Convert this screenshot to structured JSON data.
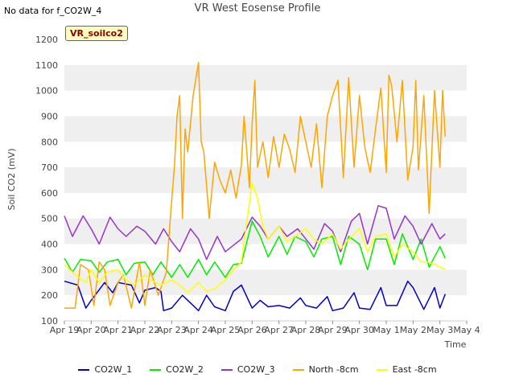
{
  "header": {
    "no_data_text": "No data for f_CO2W_4",
    "title": "VR West Eosense Profile",
    "badge": "VR_soilco2"
  },
  "chart_data": {
    "type": "line",
    "title": "VR West Eosense Profile",
    "xlabel": "Time",
    "ylabel": "Soil CO2 (mV)",
    "ylim": [
      100,
      1200
    ],
    "yticks": [
      100,
      200,
      300,
      400,
      500,
      600,
      700,
      800,
      900,
      1000,
      1100,
      1200
    ],
    "xlim": [
      0,
      15
    ],
    "xticks": [
      {
        "v": 0,
        "label": "Apr 19"
      },
      {
        "v": 1,
        "label": "Apr 20"
      },
      {
        "v": 2,
        "label": "Apr 21"
      },
      {
        "v": 3,
        "label": "Apr 22"
      },
      {
        "v": 4,
        "label": "Apr 23"
      },
      {
        "v": 5,
        "label": "Apr 24"
      },
      {
        "v": 6,
        "label": "Apr 25"
      },
      {
        "v": 7,
        "label": "Apr 26"
      },
      {
        "v": 8,
        "label": "Apr 27"
      },
      {
        "v": 9,
        "label": "Apr 28"
      },
      {
        "v": 10,
        "label": "Apr 29"
      },
      {
        "v": 11,
        "label": "Apr 30"
      },
      {
        "v": 12,
        "label": "May 1"
      },
      {
        "v": 13,
        "label": "May 2"
      },
      {
        "v": 14,
        "label": "May 3"
      },
      {
        "v": 15,
        "label": "May 4"
      }
    ],
    "grid": "horizontal bands",
    "legend_position": "bottom",
    "series": [
      {
        "name": "CO2W_1",
        "color": "#0000cc",
        "x": [
          0,
          0.5,
          0.8,
          1,
          1.5,
          1.8,
          2,
          2.5,
          2.8,
          3,
          3.4,
          3.6,
          3.7,
          4,
          4.4,
          4.7,
          5,
          5.3,
          5.6,
          6,
          6.3,
          6.6,
          7,
          7.3,
          7.6,
          8,
          8.4,
          8.8,
          9,
          9.4,
          9.8,
          10,
          10.4,
          10.8,
          11,
          11.4,
          11.8,
          12,
          12.4,
          12.8,
          13,
          13.4,
          13.8,
          14,
          14.2
        ],
        "values": [
          255,
          240,
          150,
          180,
          250,
          210,
          250,
          240,
          170,
          220,
          230,
          215,
          140,
          150,
          200,
          170,
          140,
          200,
          155,
          140,
          215,
          240,
          150,
          180,
          155,
          160,
          150,
          190,
          160,
          150,
          195,
          140,
          150,
          210,
          150,
          145,
          230,
          160,
          160,
          255,
          230,
          145,
          230,
          150,
          205
        ]
      },
      {
        "name": "CO2W_2",
        "color": "#00ee00",
        "x": [
          0,
          0.3,
          0.6,
          1,
          1.3,
          1.6,
          2,
          2.3,
          2.6,
          3,
          3.3,
          3.6,
          4,
          4.3,
          4.6,
          5,
          5.3,
          5.6,
          6,
          6.3,
          6.6,
          7,
          7.3,
          7.6,
          8,
          8.3,
          8.6,
          9,
          9.3,
          9.6,
          10,
          10.3,
          10.6,
          11,
          11.3,
          11.6,
          12,
          12.3,
          12.6,
          13,
          13.3,
          13.6,
          14,
          14.2
        ],
        "values": [
          345,
          290,
          340,
          335,
          290,
          330,
          340,
          280,
          325,
          330,
          280,
          330,
          270,
          320,
          270,
          340,
          280,
          330,
          270,
          320,
          325,
          490,
          430,
          350,
          430,
          360,
          430,
          410,
          350,
          420,
          430,
          320,
          430,
          400,
          300,
          420,
          420,
          320,
          440,
          340,
          420,
          310,
          390,
          345
        ]
      },
      {
        "name": "CO2W_3",
        "color": "#9933cc",
        "x": [
          0,
          0.3,
          0.7,
          1,
          1.3,
          1.7,
          2,
          2.3,
          2.7,
          3,
          3.4,
          3.7,
          4,
          4.3,
          4.7,
          5,
          5.3,
          5.7,
          6,
          6.3,
          6.6,
          7,
          7.3,
          7.6,
          8,
          8.3,
          8.7,
          9,
          9.3,
          9.7,
          10,
          10.3,
          10.7,
          11,
          11.3,
          11.7,
          12,
          12.3,
          12.7,
          13,
          13.3,
          13.7,
          14,
          14.2
        ],
        "values": [
          510,
          430,
          510,
          460,
          400,
          505,
          460,
          430,
          470,
          450,
          400,
          460,
          410,
          370,
          460,
          420,
          340,
          430,
          370,
          395,
          420,
          505,
          470,
          420,
          470,
          430,
          460,
          420,
          380,
          480,
          450,
          370,
          490,
          520,
          400,
          550,
          540,
          420,
          510,
          470,
          400,
          480,
          420,
          440
        ]
      },
      {
        "name": "North -8cm",
        "color": "#ffa500",
        "x": [
          0,
          0.4,
          0.6,
          0.9,
          1.1,
          1.3,
          1.5,
          1.7,
          2,
          2.2,
          2.5,
          2.8,
          3,
          3.2,
          3.5,
          3.8,
          4,
          4.1,
          4.2,
          4.3,
          4.4,
          4.5,
          4.6,
          4.8,
          5,
          5.1,
          5.2,
          5.4,
          5.6,
          5.8,
          6,
          6.2,
          6.4,
          6.6,
          6.7,
          6.9,
          7,
          7.1,
          7.2,
          7.4,
          7.6,
          7.8,
          8,
          8.2,
          8.4,
          8.6,
          8.8,
          9,
          9.2,
          9.4,
          9.6,
          9.8,
          10,
          10.2,
          10.4,
          10.6,
          10.8,
          11,
          11.2,
          11.4,
          11.6,
          11.8,
          12,
          12.1,
          12.2,
          12.4,
          12.6,
          12.8,
          13,
          13.1,
          13.2,
          13.4,
          13.6,
          13.8,
          14,
          14.1,
          14.2
        ],
        "values": [
          150,
          150,
          320,
          300,
          160,
          330,
          300,
          160,
          250,
          280,
          150,
          330,
          160,
          300,
          200,
          290,
          570,
          700,
          900,
          980,
          500,
          850,
          760,
          980,
          1110,
          800,
          760,
          500,
          720,
          650,
          600,
          690,
          580,
          710,
          900,
          620,
          870,
          1040,
          700,
          800,
          660,
          820,
          700,
          830,
          770,
          680,
          900,
          800,
          700,
          870,
          620,
          900,
          980,
          1040,
          660,
          1050,
          700,
          980,
          780,
          680,
          850,
          1010,
          680,
          1060,
          1020,
          800,
          1040,
          650,
          780,
          1040,
          690,
          980,
          520,
          1000,
          700,
          1000,
          820
        ]
      },
      {
        "name": "East -8cm",
        "color": "#ffff00",
        "x": [
          0,
          0.4,
          0.8,
          1,
          1.3,
          1.6,
          2,
          2.3,
          2.6,
          3,
          3.3,
          3.6,
          4,
          4.3,
          4.6,
          5,
          5.3,
          5.6,
          6,
          6.3,
          6.6,
          7,
          7.2,
          7.4,
          7.6,
          8,
          8.3,
          8.6,
          9,
          9.3,
          9.6,
          10,
          10.3,
          10.6,
          11,
          11.3,
          11.6,
          12,
          12.3,
          12.6,
          13,
          13.3,
          13.6,
          14,
          14.2
        ],
        "values": [
          320,
          280,
          250,
          300,
          250,
          290,
          300,
          260,
          240,
          280,
          255,
          240,
          260,
          240,
          210,
          250,
          215,
          225,
          260,
          300,
          330,
          640,
          580,
          470,
          420,
          470,
          410,
          430,
          460,
          420,
          400,
          440,
          380,
          420,
          460,
          370,
          430,
          440,
          350,
          400,
          370,
          330,
          330,
          310,
          300
        ]
      }
    ]
  }
}
